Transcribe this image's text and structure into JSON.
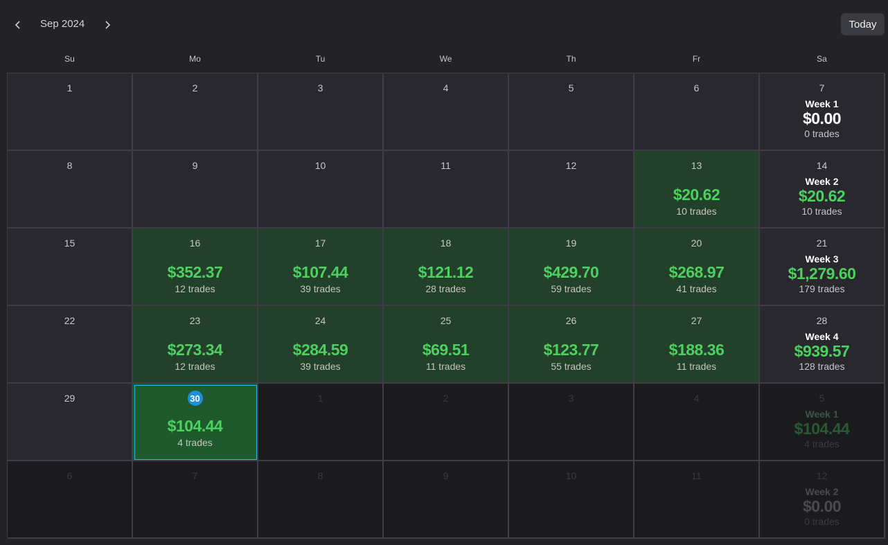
{
  "header": {
    "month_label": "Sep 2024",
    "today_label": "Today",
    "prev_icon": "chevron-left-icon",
    "next_icon": "chevron-right-icon"
  },
  "weekdays": [
    "Su",
    "Mo",
    "Tu",
    "We",
    "Th",
    "Fr",
    "Sa"
  ],
  "colors": {
    "profit_green": "#4cd05f",
    "profit_cell_bg": "#22402a",
    "today_badge": "#1f8fd6",
    "today_border": "#35b6d6"
  },
  "weeks": [
    {
      "days": [
        {
          "day": "1"
        },
        {
          "day": "2"
        },
        {
          "day": "3"
        },
        {
          "day": "4"
        },
        {
          "day": "5"
        },
        {
          "day": "6"
        }
      ],
      "summary": {
        "day": "7",
        "label": "Week 1",
        "total": "$0.00",
        "trades": "0 trades",
        "zero": true
      }
    },
    {
      "days": [
        {
          "day": "8"
        },
        {
          "day": "9"
        },
        {
          "day": "10"
        },
        {
          "day": "11"
        },
        {
          "day": "12"
        },
        {
          "day": "13",
          "pnl": "$20.62",
          "trades": "10 trades"
        }
      ],
      "summary": {
        "day": "14",
        "label": "Week 2",
        "total": "$20.62",
        "trades": "10 trades"
      }
    },
    {
      "days": [
        {
          "day": "15"
        },
        {
          "day": "16",
          "pnl": "$352.37",
          "trades": "12 trades"
        },
        {
          "day": "17",
          "pnl": "$107.44",
          "trades": "39 trades"
        },
        {
          "day": "18",
          "pnl": "$121.12",
          "trades": "28 trades"
        },
        {
          "day": "19",
          "pnl": "$429.70",
          "trades": "59 trades"
        },
        {
          "day": "20",
          "pnl": "$268.97",
          "trades": "41 trades"
        }
      ],
      "summary": {
        "day": "21",
        "label": "Week 3",
        "total": "$1,279.60",
        "trades": "179 trades"
      }
    },
    {
      "days": [
        {
          "day": "22"
        },
        {
          "day": "23",
          "pnl": "$273.34",
          "trades": "12 trades"
        },
        {
          "day": "24",
          "pnl": "$284.59",
          "trades": "39 trades"
        },
        {
          "day": "25",
          "pnl": "$69.51",
          "trades": "11 trades"
        },
        {
          "day": "26",
          "pnl": "$123.77",
          "trades": "55 trades"
        },
        {
          "day": "27",
          "pnl": "$188.36",
          "trades": "11 trades"
        }
      ],
      "summary": {
        "day": "28",
        "label": "Week 4",
        "total": "$939.57",
        "trades": "128 trades"
      }
    },
    {
      "days": [
        {
          "day": "29"
        },
        {
          "day": "30",
          "pnl": "$104.44",
          "trades": "4 trades",
          "today": true
        },
        {
          "day": "1",
          "outside": true
        },
        {
          "day": "2",
          "outside": true
        },
        {
          "day": "3",
          "outside": true
        },
        {
          "day": "4",
          "outside": true
        }
      ],
      "summary": {
        "day": "5",
        "label": "Week 1",
        "total": "$104.44",
        "trades": "4 trades",
        "outside": true
      }
    },
    {
      "days": [
        {
          "day": "6",
          "outside": true
        },
        {
          "day": "7",
          "outside": true
        },
        {
          "day": "8",
          "outside": true
        },
        {
          "day": "9",
          "outside": true
        },
        {
          "day": "10",
          "outside": true
        },
        {
          "day": "11",
          "outside": true
        }
      ],
      "summary": {
        "day": "12",
        "label": "Week 2",
        "total": "$0.00",
        "trades": "0 trades",
        "zero": true,
        "outside": true
      }
    }
  ]
}
